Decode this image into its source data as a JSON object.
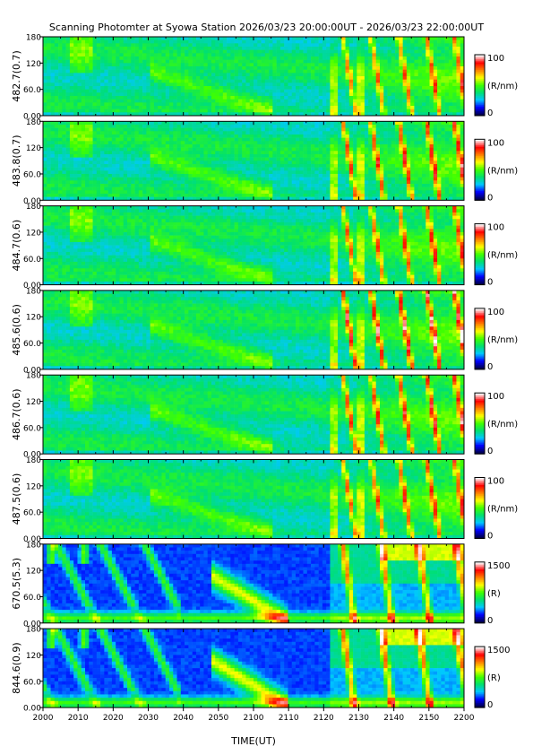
{
  "chart_data": {
    "type": "heatmap",
    "title": "Scanning Photomter at Syowa Station 2026/03/23 20:00:00UT - 2026/03/23 22:00:00UT",
    "xlabel": "TIME(UT)",
    "x_ticks": [
      "2000",
      "2010",
      "2020",
      "2030",
      "2040",
      "2050",
      "2100",
      "2110",
      "2120",
      "2130",
      "2140",
      "2150",
      "2200"
    ],
    "xlim": [
      "2000",
      "2200"
    ],
    "y_ticks": [
      "180",
      "120",
      "60.0",
      "0.00"
    ],
    "ylim": [
      0,
      180
    ],
    "panels": [
      {
        "ylabel": "482.7(0.7)",
        "colorbar_max": "100",
        "colorbar_min": "0",
        "colorbar_unit": "(R/nm)",
        "intensity": 1.0,
        "kind": "line"
      },
      {
        "ylabel": "483.8(0.7)",
        "colorbar_max": "100",
        "colorbar_min": "0",
        "colorbar_unit": "(R/nm)",
        "intensity": 1.2,
        "kind": "line"
      },
      {
        "ylabel": "484.7(0.6)",
        "colorbar_max": "100",
        "colorbar_min": "0",
        "colorbar_unit": "(R/nm)",
        "intensity": 1.1,
        "kind": "line"
      },
      {
        "ylabel": "485.6(0.6)",
        "colorbar_max": "100",
        "colorbar_min": "0",
        "colorbar_unit": "(R/nm)",
        "intensity": 1.45,
        "kind": "line"
      },
      {
        "ylabel": "486.7(0.6)",
        "colorbar_max": "100",
        "colorbar_min": "0",
        "colorbar_unit": "(R/nm)",
        "intensity": 1.2,
        "kind": "line"
      },
      {
        "ylabel": "487.5(0.6)",
        "colorbar_max": "100",
        "colorbar_min": "0",
        "colorbar_unit": "(R/nm)",
        "intensity": 1.1,
        "kind": "line"
      },
      {
        "ylabel": "670.5(5.3)",
        "colorbar_max": "1500",
        "colorbar_min": "0",
        "colorbar_unit": "(R)",
        "intensity": 1.0,
        "kind": "band"
      },
      {
        "ylabel": "844.6(0.9)",
        "colorbar_max": "1500",
        "colorbar_min": "0",
        "colorbar_unit": "(R)",
        "intensity": 1.05,
        "kind": "band"
      }
    ],
    "colormap": [
      "#00004a",
      "#0000ff",
      "#00c8ff",
      "#00e070",
      "#40ff00",
      "#ffff00",
      "#ff8000",
      "#ff0000",
      "#ffffff"
    ],
    "grid": false
  }
}
